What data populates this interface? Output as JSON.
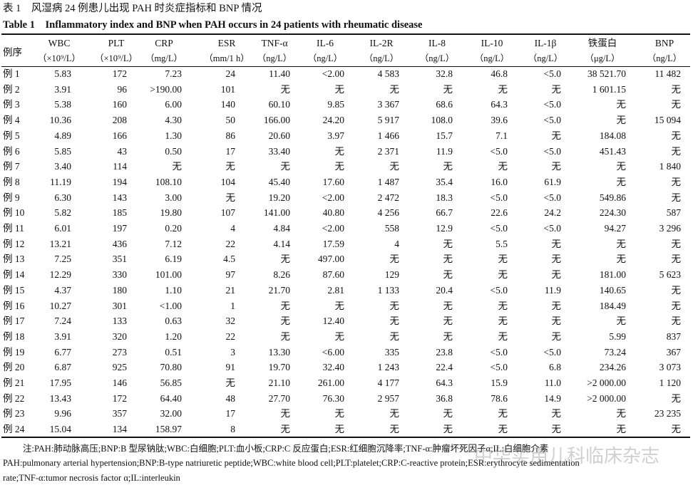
{
  "header": {
    "title_cn": "表 1　风湿病 24 例患儿出现 PAH 时炎症指标和 BNP 情况",
    "title_en": "Table 1　Inflammatory index and BNP when PAH occurs in 24 patients with rheumatic disease"
  },
  "table": {
    "columns": [
      {
        "name": "例序"
      },
      {
        "name": "WBC",
        "unit": "（×10⁹/L）"
      },
      {
        "name": "PLT",
        "unit": "（×10⁹/L）"
      },
      {
        "name": "CRP",
        "unit": "（mg/L）"
      },
      {
        "name": "ESR",
        "unit": "（mm/1 h）"
      },
      {
        "name": "TNF-α",
        "unit": "（ng/L）"
      },
      {
        "name": "IL-6",
        "unit": "（ng/L）"
      },
      {
        "name": "IL-2R",
        "unit": "（ng/L）"
      },
      {
        "name": "IL-8",
        "unit": "（ng/L）"
      },
      {
        "name": "IL-10",
        "unit": "（ng/L）"
      },
      {
        "name": "IL-1β",
        "unit": "（ng/L）"
      },
      {
        "name": "铁蛋白",
        "unit": "（μg/L）"
      },
      {
        "name": "BNP",
        "unit": "（ng/L）"
      }
    ],
    "rows": [
      [
        "例 1",
        "5.83",
        "172",
        "7.23",
        "24",
        "11.40",
        "<2.00",
        "4 583",
        "32.8",
        "46.8",
        "<5.0",
        "38 521.70",
        "11 482"
      ],
      [
        "例 2",
        "3.91",
        "96",
        ">190.00",
        "101",
        "无",
        "无",
        "无",
        "无",
        "无",
        "无",
        "1 601.15",
        "无"
      ],
      [
        "例 3",
        "5.38",
        "160",
        "6.00",
        "140",
        "60.10",
        "9.85",
        "3 367",
        "68.6",
        "64.3",
        "<5.0",
        "无",
        "无"
      ],
      [
        "例 4",
        "10.36",
        "208",
        "4.30",
        "50",
        "166.00",
        "24.20",
        "5 917",
        "108.0",
        "39.6",
        "<5.0",
        "无",
        "15 094"
      ],
      [
        "例 5",
        "4.89",
        "166",
        "1.30",
        "86",
        "20.60",
        "3.97",
        "1 466",
        "15.7",
        "7.1",
        "无",
        "184.08",
        "无"
      ],
      [
        "例 6",
        "5.85",
        "43",
        "0.50",
        "17",
        "33.40",
        "无",
        "2 371",
        "11.9",
        "<5.0",
        "<5.0",
        "451.43",
        "无"
      ],
      [
        "例 7",
        "3.40",
        "114",
        "无",
        "无",
        "无",
        "无",
        "无",
        "无",
        "无",
        "无",
        "无",
        "1 840"
      ],
      [
        "例 8",
        "11.19",
        "194",
        "108.10",
        "104",
        "45.40",
        "17.60",
        "1 487",
        "35.4",
        "16.0",
        "61.9",
        "无",
        "无"
      ],
      [
        "例 9",
        "6.30",
        "143",
        "3.00",
        "无",
        "19.20",
        "<2.00",
        "2 472",
        "18.3",
        "<5.0",
        "<5.0",
        "549.86",
        "无"
      ],
      [
        "例 10",
        "5.82",
        "185",
        "19.80",
        "107",
        "141.00",
        "40.80",
        "4 256",
        "66.7",
        "22.6",
        "24.2",
        "224.30",
        "587"
      ],
      [
        "例 11",
        "6.01",
        "197",
        "0.20",
        "4",
        "4.84",
        "<2.00",
        "558",
        "12.9",
        "<5.0",
        "<5.0",
        "94.27",
        "3 296"
      ],
      [
        "例 12",
        "13.21",
        "436",
        "7.12",
        "22",
        "4.14",
        "17.59",
        "4",
        "无",
        "5.5",
        "无",
        "无",
        "无"
      ],
      [
        "例 13",
        "7.25",
        "351",
        "6.19",
        "4.5",
        "无",
        "497.00",
        "无",
        "无",
        "无",
        "无",
        "无",
        "无"
      ],
      [
        "例 14",
        "12.29",
        "330",
        "101.00",
        "97",
        "8.26",
        "87.60",
        "129",
        "无",
        "无",
        "无",
        "181.00",
        "5 623"
      ],
      [
        "例 15",
        "4.37",
        "180",
        "1.10",
        "21",
        "21.70",
        "2.81",
        "1 133",
        "20.4",
        "<5.0",
        "11.9",
        "140.65",
        "无"
      ],
      [
        "例 16",
        "10.27",
        "301",
        "<1.00",
        "1",
        "无",
        "无",
        "无",
        "无",
        "无",
        "无",
        "184.49",
        "无"
      ],
      [
        "例 17",
        "7.24",
        "133",
        "0.63",
        "32",
        "无",
        "12.40",
        "无",
        "无",
        "无",
        "无",
        "无",
        "无"
      ],
      [
        "例 18",
        "3.91",
        "320",
        "1.20",
        "22",
        "无",
        "无",
        "无",
        "无",
        "无",
        "无",
        "5.99",
        "837"
      ],
      [
        "例 19",
        "6.77",
        "273",
        "0.51",
        "3",
        "13.30",
        "<6.00",
        "335",
        "23.8",
        "<5.0",
        "<5.0",
        "73.24",
        "367"
      ],
      [
        "例 20",
        "6.87",
        "925",
        "70.80",
        "91",
        "19.70",
        "32.40",
        "1 243",
        "22.4",
        "<5.0",
        "6.8",
        "234.26",
        "3 073"
      ],
      [
        "例 21",
        "17.95",
        "146",
        "56.85",
        "无",
        "21.10",
        "261.00",
        "4 177",
        "64.3",
        "15.9",
        "11.0",
        ">2 000.00",
        "1 120"
      ],
      [
        "例 22",
        "13.43",
        "172",
        "64.40",
        "48",
        "27.70",
        "76.30",
        "2 957",
        "36.8",
        "78.6",
        "14.9",
        ">2 000.00",
        "无"
      ],
      [
        "例 23",
        "9.96",
        "357",
        "32.00",
        "17",
        "无",
        "无",
        "无",
        "无",
        "无",
        "无",
        "无",
        "23 235"
      ],
      [
        "例 24",
        "15.04",
        "134",
        "158.97",
        "8",
        "无",
        "无",
        "无",
        "无",
        "无",
        "无",
        "无",
        "无"
      ]
    ]
  },
  "notes": [
    "注:PAH:肺动脉高压;BNP:B 型尿钠肽;WBC:白细胞;PLT:血小板;CRP:C 反应蛋白;ESR:红细胞沉降率;TNF-α:肿瘤坏死因子α;IL:白细胞介素",
    "PAH:pulmonary arterial hypertension;BNP:B-type natriuretic peptide;WBC:white blood cell;PLT:platelet;CRP:C-reactive protein;ESR:erythrocyte sedimentation",
    "rate;TNF-α:tumor necrosis factor α;IL:interleukin"
  ],
  "watermark": "中华实用儿科临床杂志"
}
